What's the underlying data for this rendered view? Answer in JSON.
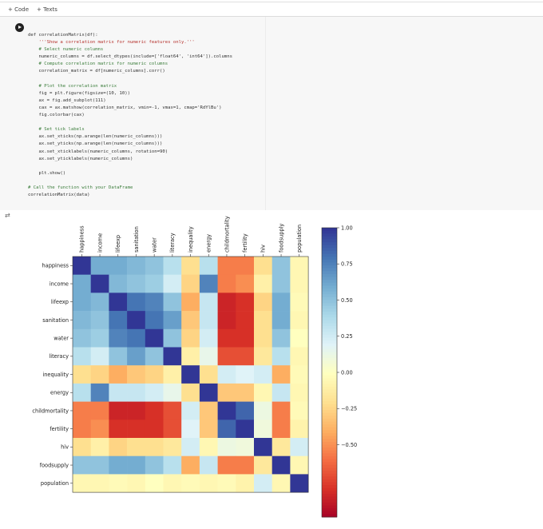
{
  "toolbar": {
    "code_label": "+ Code",
    "text_label": "+ Texts"
  },
  "code_cell": {
    "lines": [
      "def correlationMatrix(df):",
      "    '''Show a correlation matrix for numeric features only.'''",
      "    # Select numeric columns",
      "    numeric_columns = df.select_dtypes(include=['float64', 'int64']).columns",
      "    # Compute correlation matrix for numeric columns",
      "    correlation_matrix = df[numeric_columns].corr()",
      "",
      "    # Plot the correlation matrix",
      "    fig = plt.figure(figsize=(10, 10))",
      "    ax = fig.add_subplot(111)",
      "    cax = ax.matshow(correlation_matrix, vmin=-1, vmax=1, cmap='RdYlBu')",
      "    fig.colorbar(cax)",
      "",
      "    # Set tick labels",
      "    ax.set_xticks(np.arange(len(numeric_columns)))",
      "    ax.set_yticks(np.arange(len(numeric_columns)))",
      "    ax.set_xticklabels(numeric_columns, rotation=90)",
      "    ax.set_yticklabels(numeric_columns)",
      "",
      "    plt.show()",
      "",
      "# Call the function with your DataFrame",
      "correlationMatrix(data)"
    ]
  },
  "output_icon": "output-toggle-icon",
  "chart_data": {
    "type": "heatmap",
    "colormap": "RdYlBu",
    "vmin": -1,
    "vmax": 1,
    "labels": [
      "happiness",
      "income",
      "lifeexp",
      "sanitation",
      "water",
      "literacy",
      "inequality",
      "energy",
      "childmortality",
      "fertility",
      "hiv",
      "foodsupply",
      "population"
    ],
    "colorbar_ticks": [
      "1.00",
      "0.75",
      "0.50",
      "0.25",
      "0.00",
      "−0.25",
      "−0.50"
    ],
    "colorbar_tick_values": [
      1.0,
      0.75,
      0.5,
      0.25,
      0.0,
      -0.25,
      -0.5
    ],
    "matrix": [
      [
        1.0,
        0.6,
        0.6,
        0.55,
        0.5,
        0.35,
        -0.2,
        0.35,
        -0.55,
        -0.55,
        -0.2,
        0.5,
        -0.05
      ],
      [
        0.6,
        1.0,
        0.55,
        0.5,
        0.45,
        0.25,
        -0.25,
        0.75,
        -0.55,
        -0.5,
        -0.1,
        0.5,
        -0.05
      ],
      [
        0.6,
        0.55,
        1.0,
        0.8,
        0.75,
        0.5,
        -0.4,
        0.3,
        -0.85,
        -0.8,
        -0.25,
        0.6,
        -0.03
      ],
      [
        0.55,
        0.5,
        0.8,
        1.0,
        0.8,
        0.65,
        -0.3,
        0.3,
        -0.85,
        -0.8,
        -0.2,
        0.6,
        -0.05
      ],
      [
        0.5,
        0.45,
        0.75,
        0.8,
        1.0,
        0.5,
        -0.25,
        0.25,
        -0.8,
        -0.8,
        -0.2,
        0.5,
        0.0
      ],
      [
        0.35,
        0.25,
        0.5,
        0.65,
        0.5,
        1.0,
        -0.1,
        0.15,
        -0.7,
        -0.7,
        -0.15,
        0.35,
        -0.05
      ],
      [
        -0.2,
        -0.25,
        -0.4,
        -0.3,
        -0.25,
        -0.1,
        1.0,
        -0.2,
        0.25,
        0.2,
        0.25,
        -0.4,
        -0.03
      ],
      [
        0.35,
        0.75,
        0.3,
        0.3,
        0.25,
        0.15,
        -0.2,
        1.0,
        -0.3,
        -0.3,
        -0.05,
        0.3,
        -0.05
      ],
      [
        -0.55,
        -0.55,
        -0.85,
        -0.85,
        -0.8,
        -0.7,
        0.25,
        -0.3,
        1.0,
        0.85,
        0.12,
        -0.55,
        -0.03
      ],
      [
        -0.55,
        -0.5,
        -0.8,
        -0.8,
        -0.8,
        -0.7,
        0.2,
        -0.3,
        0.85,
        1.0,
        0.1,
        -0.55,
        -0.08
      ],
      [
        -0.2,
        -0.1,
        -0.25,
        -0.2,
        -0.2,
        -0.15,
        0.25,
        -0.05,
        0.12,
        0.1,
        1.0,
        -0.15,
        0.25
      ],
      [
        0.5,
        0.5,
        0.6,
        0.6,
        0.5,
        0.35,
        -0.4,
        0.3,
        -0.55,
        -0.55,
        -0.15,
        1.0,
        -0.05
      ],
      [
        -0.05,
        -0.05,
        -0.03,
        -0.05,
        0.0,
        -0.05,
        -0.03,
        -0.05,
        -0.03,
        -0.08,
        0.25,
        -0.05,
        1.0
      ]
    ]
  }
}
